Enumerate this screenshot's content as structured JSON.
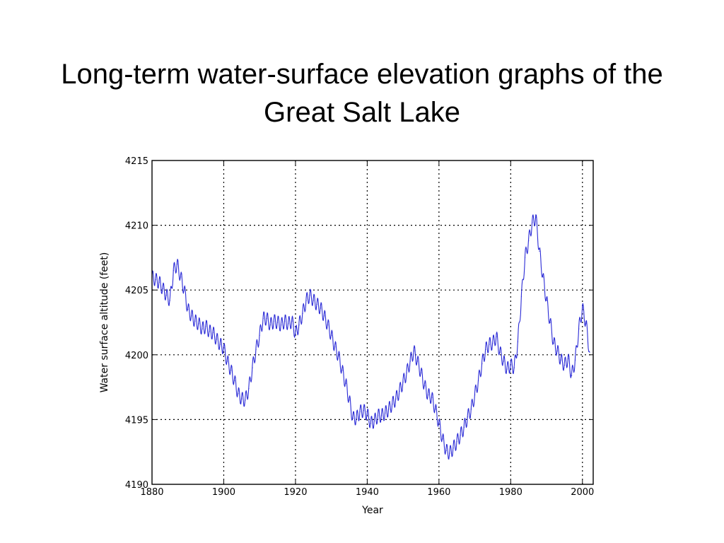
{
  "slide": {
    "title_line1": "Long-term water-surface elevation graphs of the",
    "title_line2": "Great Salt Lake"
  },
  "chart_data": {
    "type": "line",
    "title": "",
    "xlabel": "Year",
    "ylabel": "Water surface altitude (feet)",
    "xlim": [
      1880,
      2003
    ],
    "ylim": [
      4190,
      4215
    ],
    "xticks": [
      1880,
      1900,
      1920,
      1940,
      1960,
      1980,
      2000
    ],
    "yticks": [
      4190,
      4195,
      4200,
      4205,
      4210,
      4215
    ],
    "grid": true,
    "grid_style": "dotted",
    "line_color": "#2b2bd6",
    "series": [
      {
        "x": [
          1880,
          1881,
          1882,
          1883,
          1884,
          1885,
          1886,
          1887,
          1888,
          1889,
          1890,
          1891,
          1892,
          1893,
          1894,
          1895,
          1896,
          1897,
          1898,
          1899,
          1900,
          1901,
          1902,
          1903,
          1904,
          1905,
          1906,
          1907,
          1908,
          1909,
          1910,
          1911,
          1912,
          1913,
          1914,
          1915,
          1916,
          1917,
          1918,
          1919,
          1920,
          1921,
          1922,
          1923,
          1924,
          1925,
          1926,
          1927,
          1928,
          1929,
          1930,
          1931,
          1932,
          1933,
          1934,
          1935,
          1936,
          1937,
          1938,
          1939,
          1940,
          1941,
          1942,
          1943,
          1944,
          1945,
          1946,
          1947,
          1948,
          1949,
          1950,
          1951,
          1952,
          1953,
          1954,
          1955,
          1956,
          1957,
          1958,
          1959,
          1960,
          1961,
          1962,
          1963,
          1964,
          1965,
          1966,
          1967,
          1968,
          1969,
          1970,
          1971,
          1972,
          1973,
          1974,
          1975,
          1976,
          1977,
          1978,
          1979,
          1980,
          1981,
          1982,
          1983,
          1984,
          1985,
          1986,
          1987,
          1988,
          1989,
          1990,
          1991,
          1992,
          1993,
          1994,
          1995,
          1996,
          1997,
          1998,
          1999,
          2000,
          2001,
          2002
        ],
        "values": [
          4206.0,
          4205.8,
          4205.6,
          4205.1,
          4204.6,
          4204.2,
          4206.5,
          4207.0,
          4206.0,
          4205.0,
          4203.5,
          4203.0,
          4202.6,
          4202.4,
          4202.0,
          4202.2,
          4201.8,
          4201.7,
          4201.2,
          4200.8,
          4200.5,
          4199.5,
          4198.8,
          4198.0,
          4197.0,
          4196.6,
          4196.5,
          4197.4,
          4199.0,
          4200.4,
          4201.5,
          4202.8,
          4202.8,
          4202.3,
          4202.6,
          4202.5,
          4202.3,
          4202.6,
          4202.4,
          4202.6,
          4201.6,
          4202.3,
          4203.2,
          4204.2,
          4204.6,
          4204.2,
          4203.9,
          4203.6,
          4203.0,
          4202.3,
          4201.5,
          4200.6,
          4199.9,
          4198.8,
          4197.8,
          4196.5,
          4195.1,
          4195.1,
          4195.6,
          4195.7,
          4195.4,
          4194.7,
          4194.9,
          4195.3,
          4195.3,
          4195.5,
          4195.8,
          4196.2,
          4196.6,
          4197.2,
          4197.9,
          4198.6,
          4199.5,
          4200.3,
          4199.5,
          4198.6,
          4197.6,
          4196.9,
          4196.7,
          4195.8,
          4194.7,
          4193.5,
          4192.6,
          4192.4,
          4192.8,
          4193.3,
          4193.8,
          4194.4,
          4195.2,
          4195.8,
          4196.9,
          4198.0,
          4199.3,
          4200.4,
          4200.8,
          4200.9,
          4201.4,
          4200.2,
          4199.5,
          4198.9,
          4199.2,
          4199.0,
          4201.0,
          4204.5,
          4207.5,
          4208.8,
          4210.2,
          4210.6,
          4208.0,
          4206.0,
          4204.2,
          4202.5,
          4200.9,
          4200.3,
          4199.6,
          4199.2,
          4199.7,
          4198.4,
          4199.6,
          4202.0,
          4203.6,
          4202.4,
          4200.2
        ]
      }
    ]
  }
}
